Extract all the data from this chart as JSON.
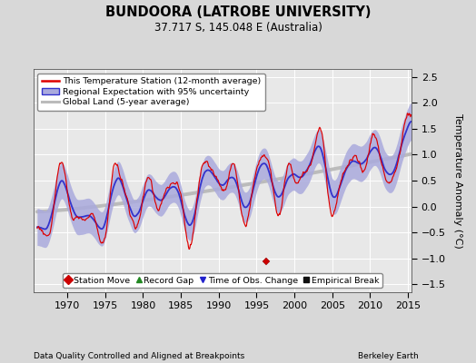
{
  "title": "BUNDOORA (LATROBE UNIVERSITY)",
  "subtitle": "37.717 S, 145.048 E (Australia)",
  "footer_left": "Data Quality Controlled and Aligned at Breakpoints",
  "footer_right": "Berkeley Earth",
  "ylabel": "Temperature Anomaly (°C)",
  "xlim": [
    1965.5,
    2015.5
  ],
  "ylim": [
    -1.65,
    2.65
  ],
  "yticks": [
    -1.5,
    -1.0,
    -0.5,
    0.0,
    0.5,
    1.0,
    1.5,
    2.0,
    2.5
  ],
  "xticks": [
    1970,
    1975,
    1980,
    1985,
    1990,
    1995,
    2000,
    2005,
    2010,
    2015
  ],
  "bg_color": "#d8d8d8",
  "plot_bg_color": "#e8e8e8",
  "grid_color": "#ffffff",
  "station_color": "#dd0000",
  "regional_center_color": "#3333cc",
  "regional_fill_color": "#aaaadd",
  "global_color": "#bbbbbb",
  "legend_items": [
    "This Temperature Station (12-month average)",
    "Regional Expectation with 95% uncertainty",
    "Global Land (5-year average)"
  ],
  "marker_legend": [
    {
      "label": "Station Move",
      "color": "#cc0000",
      "marker": "D"
    },
    {
      "label": "Record Gap",
      "color": "#228822",
      "marker": "^"
    },
    {
      "label": "Time of Obs. Change",
      "color": "#2222cc",
      "marker": "v"
    },
    {
      "label": "Empirical Break",
      "color": "#111111",
      "marker": "s"
    }
  ]
}
